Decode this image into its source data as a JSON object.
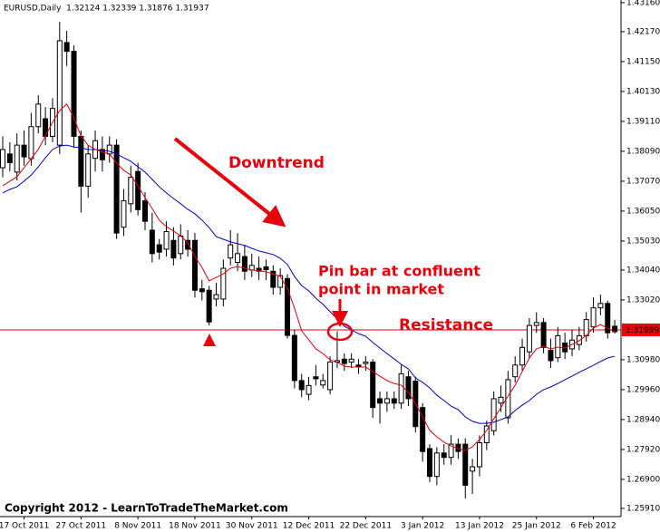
{
  "chart_data": {
    "type": "candlestick",
    "title": "EURUSD,Daily  1.32124 1.32339 1.31876 1.31937",
    "categories": [
      null,
      null,
      null,
      "17 Oct 2011",
      null,
      null,
      null,
      null,
      null,
      null,
      null,
      "27 Oct 2011",
      null,
      null,
      null,
      null,
      null,
      null,
      null,
      "8 Nov 2011",
      null,
      null,
      null,
      null,
      null,
      null,
      null,
      "18 Nov 2011",
      null,
      null,
      null,
      null,
      null,
      null,
      null,
      "30 Nov 2011",
      null,
      null,
      null,
      null,
      null,
      null,
      null,
      "12 Dec 2011",
      null,
      null,
      null,
      null,
      null,
      null,
      null,
      "22 Dec 2011",
      null,
      null,
      null,
      null,
      null,
      null,
      null,
      "3 Jan 2012",
      null,
      null,
      null,
      null,
      null,
      null,
      null,
      "13 Jan 2012",
      null,
      null,
      null,
      null,
      null,
      null,
      null,
      "25 Jan 2012",
      null,
      null,
      null,
      null,
      null,
      null,
      null,
      "6 Feb 2012",
      null,
      null,
      null
    ],
    "open": [
      1.3753,
      1.38,
      1.3738,
      1.383,
      1.3784,
      1.3893,
      1.392,
      1.386,
      1.383,
      1.418,
      1.415,
      1.386,
      1.369,
      1.3785,
      1.3815,
      1.38,
      1.383,
      1.355,
      1.363,
      1.374,
      1.364,
      1.354,
      1.349,
      1.3475,
      1.3505,
      1.346,
      1.3505,
      1.3505,
      1.334,
      1.3335,
      1.3305,
      1.3305,
      1.3445,
      1.343,
      1.345,
      1.3404,
      1.341,
      1.3415,
      1.34,
      1.3345,
      1.3375,
      1.3181,
      1.3027,
      1.298,
      1.304,
      1.3012,
      1.2996,
      1.309,
      1.31,
      1.309,
      1.308,
      1.3085,
      1.309,
      1.2965,
      1.295,
      1.2965,
      1.295,
      1.304,
      1.3025,
      1.2935,
      1.2795,
      1.27,
      1.278,
      1.2765,
      1.281,
      1.281,
      1.2718,
      1.2733,
      1.2815,
      1.2856,
      1.295,
      1.29,
      1.304,
      1.308,
      1.3125,
      1.3215,
      1.3225,
      1.313,
      1.3105,
      1.3155,
      1.3135,
      1.315,
      1.318,
      1.321,
      1.3275,
      1.329,
      1.32124
    ],
    "high": [
      1.386,
      1.384,
      1.387,
      1.388,
      1.394,
      1.4,
      1.396,
      1.399,
      1.425,
      1.422,
      1.417,
      1.388,
      1.383,
      1.388,
      1.386,
      1.386,
      1.385,
      1.368,
      1.376,
      1.377,
      1.367,
      1.36,
      1.351,
      1.357,
      1.355,
      1.356,
      1.354,
      1.353,
      1.337,
      1.335,
      1.336,
      1.344,
      1.354,
      1.353,
      1.349,
      1.346,
      1.345,
      1.344,
      1.342,
      1.341,
      1.339,
      1.32,
      1.305,
      1.304,
      1.308,
      1.305,
      1.311,
      1.3195,
      1.312,
      1.312,
      1.31,
      1.311,
      1.31,
      1.299,
      1.299,
      1.299,
      1.308,
      1.306,
      1.304,
      1.295,
      1.281,
      1.28,
      1.281,
      1.284,
      1.283,
      1.283,
      1.276,
      1.284,
      1.289,
      1.299,
      1.301,
      1.306,
      1.311,
      1.317,
      1.324,
      1.326,
      1.324,
      1.317,
      1.321,
      1.319,
      1.32,
      1.321,
      1.326,
      1.331,
      1.332,
      1.33,
      1.32339
    ],
    "low": [
      1.372,
      1.374,
      1.371,
      1.376,
      1.376,
      1.387,
      1.383,
      1.384,
      1.38,
      1.41,
      1.382,
      1.36,
      1.365,
      1.374,
      1.374,
      1.377,
      1.351,
      1.352,
      1.36,
      1.359,
      1.354,
      1.343,
      1.344,
      1.345,
      1.342,
      1.344,
      1.345,
      1.331,
      1.33,
      1.3215,
      1.328,
      1.328,
      1.342,
      1.34,
      1.337,
      1.338,
      1.337,
      1.337,
      1.332,
      1.332,
      1.317,
      1.3,
      1.297,
      1.296,
      1.301,
      1.3,
      1.298,
      1.307,
      1.306,
      1.307,
      1.305,
      1.306,
      1.29,
      1.288,
      1.292,
      1.293,
      1.293,
      1.294,
      1.285,
      1.275,
      1.268,
      1.267,
      1.274,
      1.274,
      1.276,
      1.2625,
      1.264,
      1.27,
      1.279,
      1.284,
      1.292,
      1.288,
      1.302,
      1.306,
      1.31,
      1.319,
      1.312,
      1.307,
      1.309,
      1.31,
      1.311,
      1.313,
      1.316,
      1.319,
      1.325,
      1.317,
      1.31876
    ],
    "close": [
      1.3815,
      1.377,
      1.383,
      1.379,
      1.3893,
      1.397,
      1.386,
      1.3955,
      1.4186,
      1.415,
      1.386,
      1.369,
      1.38,
      1.3845,
      1.378,
      1.383,
      1.353,
      1.364,
      1.372,
      1.361,
      1.357,
      1.346,
      1.3465,
      1.3535,
      1.3445,
      1.352,
      1.3475,
      1.3335,
      1.333,
      1.3227,
      1.332,
      1.341,
      1.349,
      1.346,
      1.34,
      1.342,
      1.34,
      1.3405,
      1.3345,
      1.3385,
      1.3181,
      1.3027,
      1.2996,
      1.301,
      1.3033,
      1.3027,
      1.309,
      1.3095,
      1.3085,
      1.31,
      1.3075,
      1.309,
      1.2935,
      1.295,
      1.2965,
      1.295,
      1.305,
      1.2965,
      1.287,
      1.2785,
      1.27,
      1.278,
      1.2765,
      1.281,
      1.2785,
      1.267,
      1.2733,
      1.2815,
      1.2872,
      1.2965,
      1.297,
      1.303,
      1.308,
      1.314,
      1.3215,
      1.3225,
      1.314,
      1.3095,
      1.318,
      1.3125,
      1.3165,
      1.318,
      1.3235,
      1.3275,
      1.329,
      1.319,
      1.31937
    ],
    "series": [
      {
        "color": "#0000cc",
        "values": [
          1.3667,
          1.3679,
          1.3688,
          1.3707,
          1.3728,
          1.3756,
          1.3787,
          1.3815,
          1.3827,
          1.383,
          1.3824,
          1.3821,
          1.3815,
          1.3815,
          1.3812,
          1.3809,
          1.38,
          1.3787,
          1.3775,
          1.3756,
          1.3738,
          1.3713,
          1.3688,
          1.3667,
          1.3648,
          1.363,
          1.3611,
          1.3596,
          1.3574,
          1.3549,
          1.3518,
          1.3509,
          1.35,
          1.3494,
          1.3488,
          1.3478,
          1.3469,
          1.3463,
          1.3457,
          1.3444,
          1.3423,
          1.3382,
          1.3351,
          1.3333,
          1.3308,
          1.3287,
          1.3262,
          1.3237,
          1.3212,
          1.32,
          1.3187,
          1.3178,
          1.3157,
          1.3138,
          1.3119,
          1.3101,
          1.3082,
          1.3067,
          1.3036,
          1.3021,
          1.3002,
          1.2977,
          1.2959,
          1.294,
          1.2928,
          1.2903,
          1.2888,
          1.2881,
          1.2881,
          1.2885,
          1.2894,
          1.2903,
          1.2925,
          1.2943,
          1.2959,
          1.298,
          1.2996,
          1.3005,
          1.3017,
          1.303,
          1.3042,
          1.3055,
          1.3067,
          1.3079,
          1.3092,
          1.3104,
          1.311
        ]
      },
      {
        "color": "#e8000b",
        "values": [
          1.3691,
          1.3707,
          1.3722,
          1.3753,
          1.3784,
          1.3815,
          1.3861,
          1.3908,
          1.3948,
          1.397,
          1.3923,
          1.3861,
          1.383,
          1.3815,
          1.3806,
          1.38,
          1.3769,
          1.3744,
          1.3728,
          1.3691,
          1.3651,
          1.3614,
          1.3574,
          1.3552,
          1.3537,
          1.3521,
          1.3497,
          1.345,
          1.3413,
          1.3367,
          1.3379,
          1.3391,
          1.341,
          1.3416,
          1.341,
          1.3404,
          1.3401,
          1.3398,
          1.3391,
          1.3382,
          1.3342,
          1.3274,
          1.3197,
          1.3166,
          1.3135,
          1.3119,
          1.3098,
          1.3089,
          1.3076,
          1.3073,
          1.3073,
          1.3073,
          1.3058,
          1.3042,
          1.3027,
          1.3017,
          1.3011,
          1.2987,
          1.2949,
          1.2903,
          1.2857,
          1.2835,
          1.2817,
          1.2804,
          1.2795,
          1.2789,
          1.2801,
          1.2826,
          1.2857,
          1.2897,
          1.2934,
          1.2974,
          1.3011,
          1.3058,
          1.3104,
          1.3135,
          1.3144,
          1.3135,
          1.3141,
          1.3138,
          1.315,
          1.3163,
          1.3181,
          1.3206,
          1.3218,
          1.3206,
          1.3193
        ]
      }
    ],
    "up_color": "#ffffff",
    "down_color": "#000000",
    "resistance_level": 1.31999,
    "resistance_color": "#e8000b",
    "ylim": [
      1.2563,
      1.4325
    ],
    "yticks": [
      {
        "value": 1.4316,
        "label": "1.43160"
      },
      {
        "value": 1.4217,
        "label": "1.42170"
      },
      {
        "value": 1.4115,
        "label": "1.41150"
      },
      {
        "value": 1.4013,
        "label": "1.40130"
      },
      {
        "value": 1.3911,
        "label": "1.39110"
      },
      {
        "value": 1.3809,
        "label": "1.38090"
      },
      {
        "value": 1.3707,
        "label": "1.37070"
      },
      {
        "value": 1.3605,
        "label": "1.36050"
      },
      {
        "value": 1.3503,
        "label": "1.35030"
      },
      {
        "value": 1.3404,
        "label": "1.34040"
      },
      {
        "value": 1.3302,
        "label": "1.33020"
      },
      {
        "value": 1.3098,
        "label": "1.30980"
      },
      {
        "value": 1.2996,
        "label": "1.29960"
      },
      {
        "value": 1.2894,
        "label": "1.28940"
      },
      {
        "value": 1.2792,
        "label": "1.27920"
      },
      {
        "value": 1.269,
        "label": "1.26900"
      },
      {
        "value": 1.2591,
        "label": "1.25910"
      }
    ],
    "grid": false,
    "annotations": {
      "trend": "Downtrend",
      "pin_bar": [
        "Pin bar at confluent",
        "point in market"
      ],
      "resistance": "Resistance",
      "copyright": "Copyright 2012 - LearnToTradeTheMarket.com"
    }
  }
}
